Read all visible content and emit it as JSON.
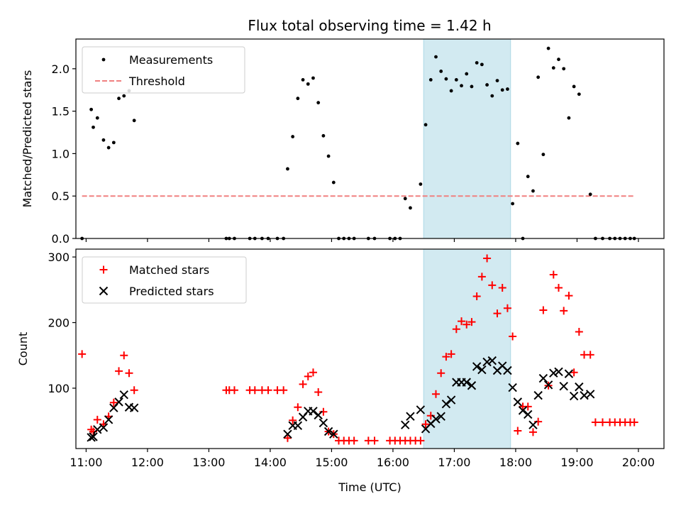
{
  "figure": {
    "title": "Flux total observing time = 1.42 h"
  },
  "colors": {
    "highlight": "#add8e6",
    "matched": "#ff0000",
    "predicted": "#000000",
    "threshold": "#f08080",
    "measurement": "#000000"
  },
  "chart_data": [
    {
      "type": "scatter",
      "ylabel": "Matched/Predicted stars",
      "xlabel": "",
      "x_axis": "time-of-day",
      "xlim": [
        "10:50",
        "20:25"
      ],
      "ylim": [
        0,
        2.35
      ],
      "yticks": [
        0.0,
        0.5,
        1.0,
        1.5,
        2.0
      ],
      "ytick_labels": [
        "0.0",
        "0.5",
        "1.0",
        "1.5",
        "2.0"
      ],
      "legend": {
        "position": "top-left",
        "entries": [
          "Measurements",
          "Threshold"
        ]
      },
      "highlight_span": {
        "start": "16:30",
        "end": "17:55"
      },
      "threshold": {
        "name": "Threshold",
        "value": 0.5,
        "x": [
          "10:56",
          "19:56"
        ]
      },
      "series": [
        {
          "name": "Measurements",
          "marker": "dot",
          "points": [
            [
              "10:56",
              0.0
            ],
            [
              "11:05",
              1.52
            ],
            [
              "11:07",
              1.31
            ],
            [
              "11:11",
              1.42
            ],
            [
              "11:17",
              1.16
            ],
            [
              "11:22",
              1.07
            ],
            [
              "11:27",
              1.13
            ],
            [
              "11:32",
              1.65
            ],
            [
              "11:37",
              1.68
            ],
            [
              "11:42",
              1.74
            ],
            [
              "11:47",
              1.39
            ],
            [
              "13:17",
              0.0
            ],
            [
              "13:20",
              0.0
            ],
            [
              "13:25",
              0.0
            ],
            [
              "13:40",
              0.0
            ],
            [
              "13:45",
              0.0
            ],
            [
              "13:52",
              0.0
            ],
            [
              "13:58",
              0.0
            ],
            [
              "14:07",
              0.0
            ],
            [
              "14:13",
              0.0
            ],
            [
              "14:17",
              0.82
            ],
            [
              "14:22",
              1.2
            ],
            [
              "14:27",
              1.65
            ],
            [
              "14:32",
              1.87
            ],
            [
              "14:37",
              1.82
            ],
            [
              "14:42",
              1.89
            ],
            [
              "14:47",
              1.6
            ],
            [
              "14:52",
              1.21
            ],
            [
              "14:57",
              0.97
            ],
            [
              "15:02",
              0.66
            ],
            [
              "15:07",
              0.0
            ],
            [
              "15:12",
              0.0
            ],
            [
              "15:17",
              0.0
            ],
            [
              "15:22",
              0.0
            ],
            [
              "15:36",
              0.0
            ],
            [
              "15:42",
              0.0
            ],
            [
              "15:57",
              0.0
            ],
            [
              "16:02",
              0.0
            ],
            [
              "16:07",
              0.0
            ],
            [
              "16:12",
              0.47
            ],
            [
              "16:17",
              0.36
            ],
            [
              "16:27",
              0.64
            ],
            [
              "16:32",
              1.34
            ],
            [
              "16:37",
              1.87
            ],
            [
              "16:42",
              2.14
            ],
            [
              "16:47",
              1.97
            ],
            [
              "16:52",
              1.88
            ],
            [
              "16:57",
              1.74
            ],
            [
              "17:02",
              1.87
            ],
            [
              "17:07",
              1.8
            ],
            [
              "17:12",
              1.94
            ],
            [
              "17:17",
              1.79
            ],
            [
              "17:22",
              2.07
            ],
            [
              "17:27",
              2.05
            ],
            [
              "17:32",
              1.81
            ],
            [
              "17:37",
              1.68
            ],
            [
              "17:42",
              1.86
            ],
            [
              "17:47",
              1.75
            ],
            [
              "17:52",
              1.76
            ],
            [
              "17:57",
              0.41
            ],
            [
              "18:02",
              1.12
            ],
            [
              "18:07",
              0.0
            ],
            [
              "18:12",
              0.73
            ],
            [
              "18:17",
              0.56
            ],
            [
              "18:22",
              1.9
            ],
            [
              "18:27",
              0.99
            ],
            [
              "18:32",
              2.24
            ],
            [
              "18:37",
              2.01
            ],
            [
              "18:42",
              2.11
            ],
            [
              "18:47",
              2.0
            ],
            [
              "18:52",
              1.42
            ],
            [
              "18:57",
              1.79
            ],
            [
              "19:02",
              1.7
            ],
            [
              "19:13",
              0.52
            ],
            [
              "19:18",
              0.0
            ],
            [
              "19:25",
              0.0
            ],
            [
              "19:32",
              0.0
            ],
            [
              "19:37",
              0.0
            ],
            [
              "19:42",
              0.0
            ],
            [
              "19:47",
              0.0
            ],
            [
              "19:52",
              0.0
            ],
            [
              "19:56",
              0.0
            ]
          ]
        }
      ]
    },
    {
      "type": "scatter",
      "ylabel": "Count",
      "xlabel": "Time (UTC)",
      "x_axis": "time-of-day",
      "xlim": [
        "10:50",
        "20:25"
      ],
      "ylim": [
        8,
        312
      ],
      "yticks": [
        100,
        200,
        300
      ],
      "ytick_labels": [
        "100",
        "200",
        "300"
      ],
      "xticks": [
        "11:00",
        "12:00",
        "13:00",
        "14:00",
        "15:00",
        "16:00",
        "17:00",
        "18:00",
        "19:00",
        "20:00"
      ],
      "xtick_labels": [
        "11:00",
        "12:00",
        "13:00",
        "14:00",
        "15:00",
        "16:00",
        "17:00",
        "18:00",
        "19:00",
        "20:00"
      ],
      "legend": {
        "position": "top-left",
        "entries": [
          "Matched stars",
          "Predicted stars"
        ]
      },
      "highlight_span": {
        "start": "16:30",
        "end": "17:55"
      },
      "series": [
        {
          "name": "Matched stars",
          "marker": "plus",
          "points": [
            [
              "10:56",
              152
            ],
            [
              "11:05",
              37
            ],
            [
              "11:07",
              34
            ],
            [
              "11:11",
              52
            ],
            [
              "11:17",
              45
            ],
            [
              "11:22",
              57
            ],
            [
              "11:27",
              78
            ],
            [
              "11:32",
              126
            ],
            [
              "11:37",
              150
            ],
            [
              "11:42",
              123
            ],
            [
              "11:47",
              97
            ],
            [
              "13:17",
              97
            ],
            [
              "13:20",
              97
            ],
            [
              "13:25",
              97
            ],
            [
              "13:40",
              97
            ],
            [
              "13:45",
              97
            ],
            [
              "13:52",
              97
            ],
            [
              "13:58",
              97
            ],
            [
              "14:07",
              97
            ],
            [
              "14:13",
              97
            ],
            [
              "14:17",
              24
            ],
            [
              "14:22",
              51
            ],
            [
              "14:27",
              71
            ],
            [
              "14:32",
              106
            ],
            [
              "14:37",
              118
            ],
            [
              "14:42",
              124
            ],
            [
              "14:47",
              94
            ],
            [
              "14:52",
              64
            ],
            [
              "14:57",
              34
            ],
            [
              "15:02",
              30
            ],
            [
              "15:07",
              20
            ],
            [
              "15:12",
              20
            ],
            [
              "15:17",
              20
            ],
            [
              "15:22",
              20
            ],
            [
              "15:36",
              20
            ],
            [
              "15:42",
              20
            ],
            [
              "15:57",
              20
            ],
            [
              "16:02",
              20
            ],
            [
              "16:07",
              20
            ],
            [
              "16:12",
              20
            ],
            [
              "16:17",
              20
            ],
            [
              "16:22",
              20
            ],
            [
              "16:27",
              20
            ],
            [
              "16:32",
              45
            ],
            [
              "16:37",
              58
            ],
            [
              "16:42",
              91
            ],
            [
              "16:47",
              123
            ],
            [
              "16:52",
              148
            ],
            [
              "16:57",
              152
            ],
            [
              "17:02",
              190
            ],
            [
              "17:07",
              202
            ],
            [
              "17:12",
              197
            ],
            [
              "17:17",
              201
            ],
            [
              "17:22",
              240
            ],
            [
              "17:27",
              270
            ],
            [
              "17:32",
              298
            ],
            [
              "17:37",
              257
            ],
            [
              "17:42",
              214
            ],
            [
              "17:47",
              253
            ],
            [
              "17:52",
              222
            ],
            [
              "17:57",
              179
            ],
            [
              "18:02",
              35
            ],
            [
              "18:07",
              72
            ],
            [
              "18:12",
              72
            ],
            [
              "18:17",
              33
            ],
            [
              "18:22",
              49
            ],
            [
              "18:27",
              219
            ],
            [
              "18:32",
              104
            ],
            [
              "18:37",
              273
            ],
            [
              "18:42",
              253
            ],
            [
              "18:47",
              218
            ],
            [
              "18:52",
              241
            ],
            [
              "18:57",
              124
            ],
            [
              "19:02",
              186
            ],
            [
              "19:07",
              151
            ],
            [
              "19:13",
              151
            ],
            [
              "19:18",
              48
            ],
            [
              "19:25",
              48
            ],
            [
              "19:32",
              48
            ],
            [
              "19:37",
              48
            ],
            [
              "19:42",
              48
            ],
            [
              "19:47",
              48
            ],
            [
              "19:52",
              48
            ],
            [
              "19:56",
              48
            ]
          ]
        },
        {
          "name": "Predicted stars",
          "marker": "cross",
          "points": [
            [
              "11:05",
              25
            ],
            [
              "11:07",
              26
            ],
            [
              "11:11",
              37
            ],
            [
              "11:17",
              40
            ],
            [
              "11:22",
              52
            ],
            [
              "11:27",
              70
            ],
            [
              "11:32",
              79
            ],
            [
              "11:37",
              90
            ],
            [
              "11:42",
              71
            ],
            [
              "11:47",
              70
            ],
            [
              "14:17",
              30
            ],
            [
              "14:22",
              43
            ],
            [
              "14:27",
              43
            ],
            [
              "14:32",
              56
            ],
            [
              "14:37",
              65
            ],
            [
              "14:42",
              65
            ],
            [
              "14:47",
              59
            ],
            [
              "14:52",
              47
            ],
            [
              "14:57",
              34
            ],
            [
              "15:02",
              30
            ],
            [
              "16:12",
              44
            ],
            [
              "16:17",
              57
            ],
            [
              "16:27",
              67
            ],
            [
              "16:32",
              38
            ],
            [
              "16:37",
              46
            ],
            [
              "16:42",
              53
            ],
            [
              "16:47",
              57
            ],
            [
              "16:52",
              76
            ],
            [
              "16:57",
              82
            ],
            [
              "17:02",
              109
            ],
            [
              "17:07",
              109
            ],
            [
              "17:12",
              109
            ],
            [
              "17:17",
              104
            ],
            [
              "17:22",
              133
            ],
            [
              "17:27",
              128
            ],
            [
              "17:32",
              140
            ],
            [
              "17:37",
              142
            ],
            [
              "17:42",
              127
            ],
            [
              "17:47",
              134
            ],
            [
              "17:52",
              127
            ],
            [
              "17:57",
              101
            ],
            [
              "18:02",
              79
            ],
            [
              "18:07",
              66
            ],
            [
              "18:12",
              60
            ],
            [
              "18:17",
              44
            ],
            [
              "18:22",
              89
            ],
            [
              "18:27",
              115
            ],
            [
              "18:32",
              105
            ],
            [
              "18:37",
              123
            ],
            [
              "18:42",
              125
            ],
            [
              "18:47",
              103
            ],
            [
              "18:52",
              122
            ],
            [
              "18:57",
              88
            ],
            [
              "19:02",
              102
            ],
            [
              "19:07",
              89
            ],
            [
              "19:13",
              91
            ]
          ]
        }
      ]
    }
  ]
}
